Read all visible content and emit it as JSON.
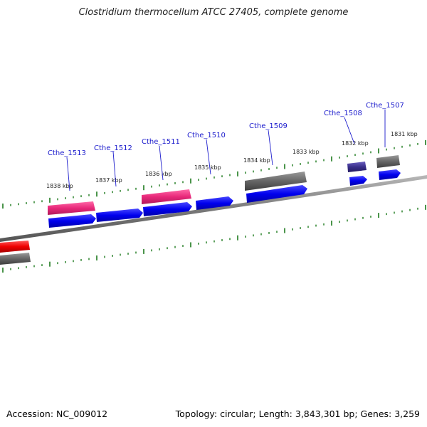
{
  "title": "Clostridium thermocellum ATCC 27405, complete genome",
  "footer": {
    "accession": "Accession: NC_009012",
    "summary": "Topology: circular; Length: 3,843,301 bp; Genes: 3,259"
  },
  "colors": {
    "cds_blue": "#0000ee",
    "pink": "#e8287a",
    "gray": "#666666",
    "purple": "#3a2f8a",
    "red": "#ee0000",
    "tick_green": "#1d7a1d",
    "label_blue": "#1a1acc"
  },
  "ruler": {
    "kbp_labels": [
      "1838 kbp",
      "1837 kbp",
      "1836 kbp",
      "1835 kbp",
      "1834 kbp",
      "1833 kbp",
      "1832 kbp",
      "1831 kbp"
    ]
  },
  "genes": [
    {
      "name": "Cthe_1513"
    },
    {
      "name": "Cthe_1512"
    },
    {
      "name": "Cthe_1511"
    },
    {
      "name": "Cthe_1510"
    },
    {
      "name": "Cthe_1509"
    },
    {
      "name": "Cthe_1508"
    },
    {
      "name": "Cthe_1507"
    }
  ]
}
